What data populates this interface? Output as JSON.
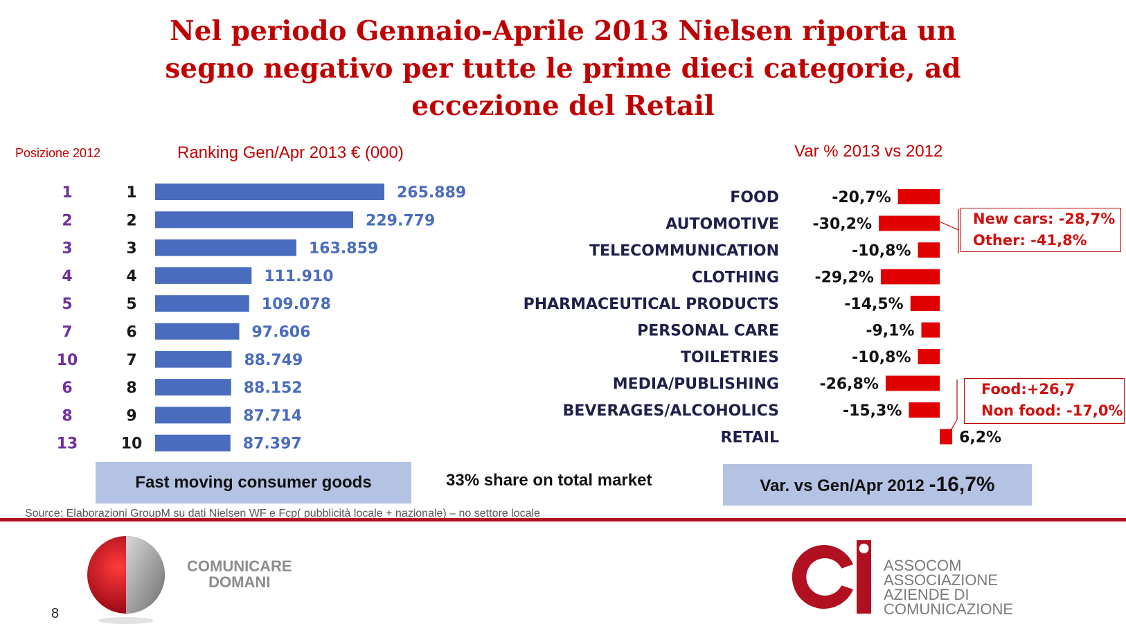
{
  "title_lines": [
    "Nel periodo Gennaio-Aprile 2013 Nielsen riporta un",
    "segno negativo per tutte le prime dieci categorie, ad",
    "eccezione del Retail"
  ],
  "chart_data": [
    {
      "type": "bar",
      "orientation": "horizontal",
      "title": "Ranking Gen/Apr 2013 € (000)",
      "column_header": "Posizione 2012",
      "positions_2012": [
        "1",
        "2",
        "3",
        "4",
        "5",
        "7",
        "10",
        "6",
        "8",
        "13"
      ],
      "ranks_2013": [
        "1",
        "2",
        "3",
        "4",
        "5",
        "6",
        "7",
        "8",
        "9",
        "10"
      ],
      "values": [
        265889,
        229779,
        163859,
        111910,
        109078,
        97606,
        88749,
        88152,
        87714,
        87397
      ],
      "value_labels": [
        "265.889",
        "229.779",
        "163.859",
        "111.910",
        "109.078",
        "97.606",
        "88.749",
        "88.152",
        "87.714",
        "87.397"
      ],
      "bar_color": "#4a6cbf",
      "position_color": "#7030a0"
    },
    {
      "type": "bar",
      "orientation": "horizontal",
      "title": "Var % 2013 vs 2012",
      "categories": [
        "FOOD",
        "AUTOMOTIVE",
        "TELECOMMUNICATION",
        "CLOTHING",
        "PHARMACEUTICAL PRODUCTS",
        "PERSONAL CARE",
        "TOILETRIES",
        "MEDIA/PUBLISHING",
        "BEVERAGES/ALCOHOLICS",
        "RETAIL"
      ],
      "values": [
        -20.7,
        -30.2,
        -10.8,
        -29.2,
        -14.5,
        -9.1,
        -10.8,
        -26.8,
        -15.3,
        6.2
      ],
      "value_labels": [
        "-20,7%",
        "-30,2%",
        "-10,8%",
        "-29,2%",
        "-14,5%",
        "-9,1%",
        "-10,8%",
        "-26,8%",
        "-15,3%",
        "6,2%"
      ],
      "bar_color": "#e00000",
      "annotations": [
        {
          "category": "AUTOMOTIVE",
          "lines": [
            "New cars: -28,7%",
            "Other: -41,8%"
          ]
        },
        {
          "category": "RETAIL",
          "lines": [
            "Food:+26,7",
            "Non food: -17,0%"
          ]
        }
      ]
    }
  ],
  "bottom": {
    "fmcg_label": "Fast moving consumer goods",
    "share_text": "33% share on total market",
    "var_label": "Var. vs Gen/Apr 2012 ",
    "var_value": "-16,7%"
  },
  "source": "Source: Elaborazioni GroupM su dati Nielsen WF e Fcp( pubblicità locale + nazionale) – no settore locale",
  "logos": {
    "left_text": [
      "COMUNICARE",
      "DOMANI"
    ],
    "right_text": [
      "ASSOCOM",
      "ASSOCIAZIONE",
      "AZIENDE DI",
      "COMUNICAZIONE"
    ]
  },
  "page_number": "8",
  "colors": {
    "title": "#c00000",
    "accent": "#b01020",
    "box_fill": "#b4c2e4"
  }
}
